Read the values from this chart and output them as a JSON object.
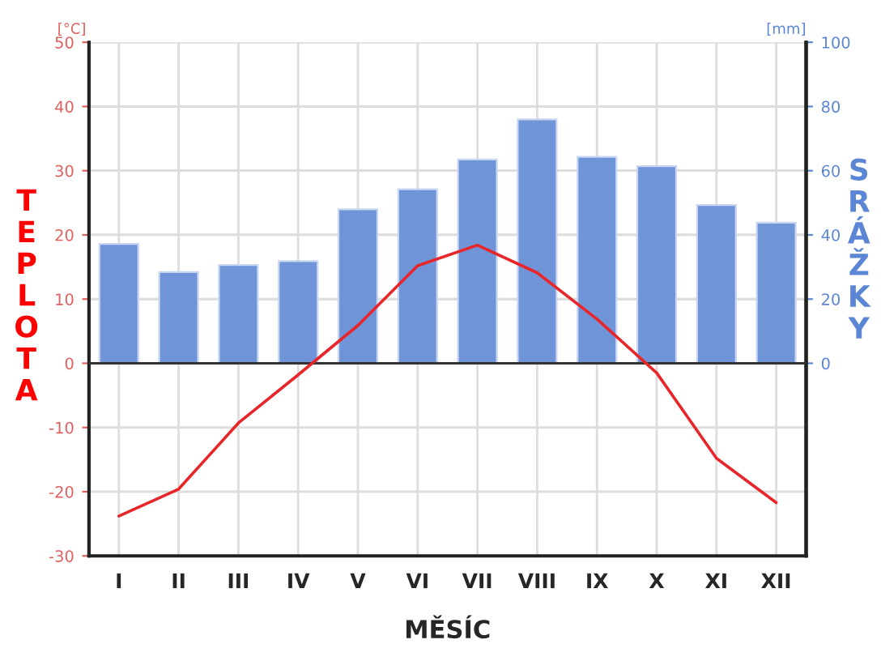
{
  "chart_data": {
    "type": "bar",
    "xlabel": "MĚSÍC",
    "ylabel": "TEPLOTA",
    "y2label": "SRÁŽKY",
    "annotations": [
      "[°C]",
      "[mm]"
    ],
    "categories": [
      "I",
      "II",
      "III",
      "IV",
      "V",
      "VI",
      "VII",
      "VIII",
      "IX",
      "X",
      "XI",
      "XII"
    ],
    "series": [
      {
        "axis": "y2",
        "color": "#6f95d8",
        "values": [
          37.2,
          28.4,
          30.6,
          31.8,
          48,
          54.2,
          63.5,
          76,
          64.3,
          61.4,
          49.3,
          43.8
        ]
      },
      {
        "type": "line",
        "axis": "y",
        "color": "#e8262a",
        "values": [
          -23.8,
          -19.6,
          -9.3,
          -1.8,
          5.9,
          15.2,
          18.4,
          14.1,
          6.9,
          -1.5,
          -14.8,
          -21.7
        ]
      }
    ],
    "ylim": [
      -30,
      50
    ],
    "yticks": [
      -30,
      -20,
      -10,
      0,
      10,
      20,
      30,
      40,
      50
    ],
    "y2lim": [
      -60,
      100
    ],
    "y2ticks": [
      0,
      20,
      40,
      60,
      80,
      100
    ],
    "grid": true,
    "line_style": "solid",
    "marker": "none"
  }
}
